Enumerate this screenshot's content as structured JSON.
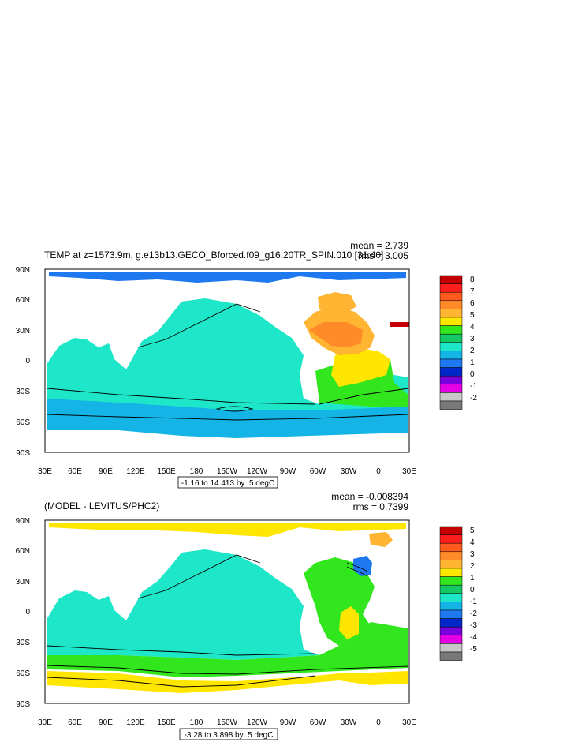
{
  "panels": [
    {
      "id": "top",
      "title": "TEMP at z=1573.9m, g.e13b13.GECO_Bforced.f09_g16.20TR_SPIN.010 [31:40]",
      "mean": "mean = 2.739",
      "rms": "rms = 3.005",
      "contour_info": "-1.16 to 14.413 by .5 degC",
      "colorbar_labels": [
        "8",
        "7",
        "6",
        "5",
        "4",
        "3",
        "2",
        "1",
        "0",
        "-1",
        "-2"
      ],
      "colorbar_colors": [
        "#c40000",
        "#ff1e1e",
        "#ff5a1e",
        "#ff8a28",
        "#ffb432",
        "#ffe600",
        "#32e61e",
        "#14c864",
        "#1ee6c8",
        "#14b4e6",
        "#1e78f0",
        "#0028c8",
        "#7800dc",
        "#e600e6",
        "#c8c8c8",
        "#787878"
      ]
    },
    {
      "id": "bottom",
      "title": "(MODEL - LEVITUS/PHC2)",
      "mean": "mean = -0.008394",
      "rms": "rms = 0.7399",
      "contour_info": "-3.28 to 3.898 by .5 degC",
      "colorbar_labels": [
        "5",
        "4",
        "3",
        "2",
        "1",
        "0",
        "-1",
        "-2",
        "-3",
        "-4",
        "-5"
      ],
      "colorbar_colors": [
        "#c40000",
        "#ff1e1e",
        "#ff5a1e",
        "#ff8a28",
        "#ffb432",
        "#ffe600",
        "#32e61e",
        "#14c864",
        "#1ee6c8",
        "#14b4e6",
        "#1e78f0",
        "#0028c8",
        "#7800dc",
        "#e600e6",
        "#c8c8c8",
        "#787878"
      ]
    }
  ],
  "axes": {
    "lat_labels": [
      "90N",
      "60N",
      "30N",
      "0",
      "30S",
      "60S",
      "90S"
    ],
    "lon_labels": [
      "30E",
      "60E",
      "90E",
      "120E",
      "150E",
      "180",
      "150W",
      "120W",
      "90W",
      "60W",
      "30W",
      "0",
      "30E"
    ]
  }
}
